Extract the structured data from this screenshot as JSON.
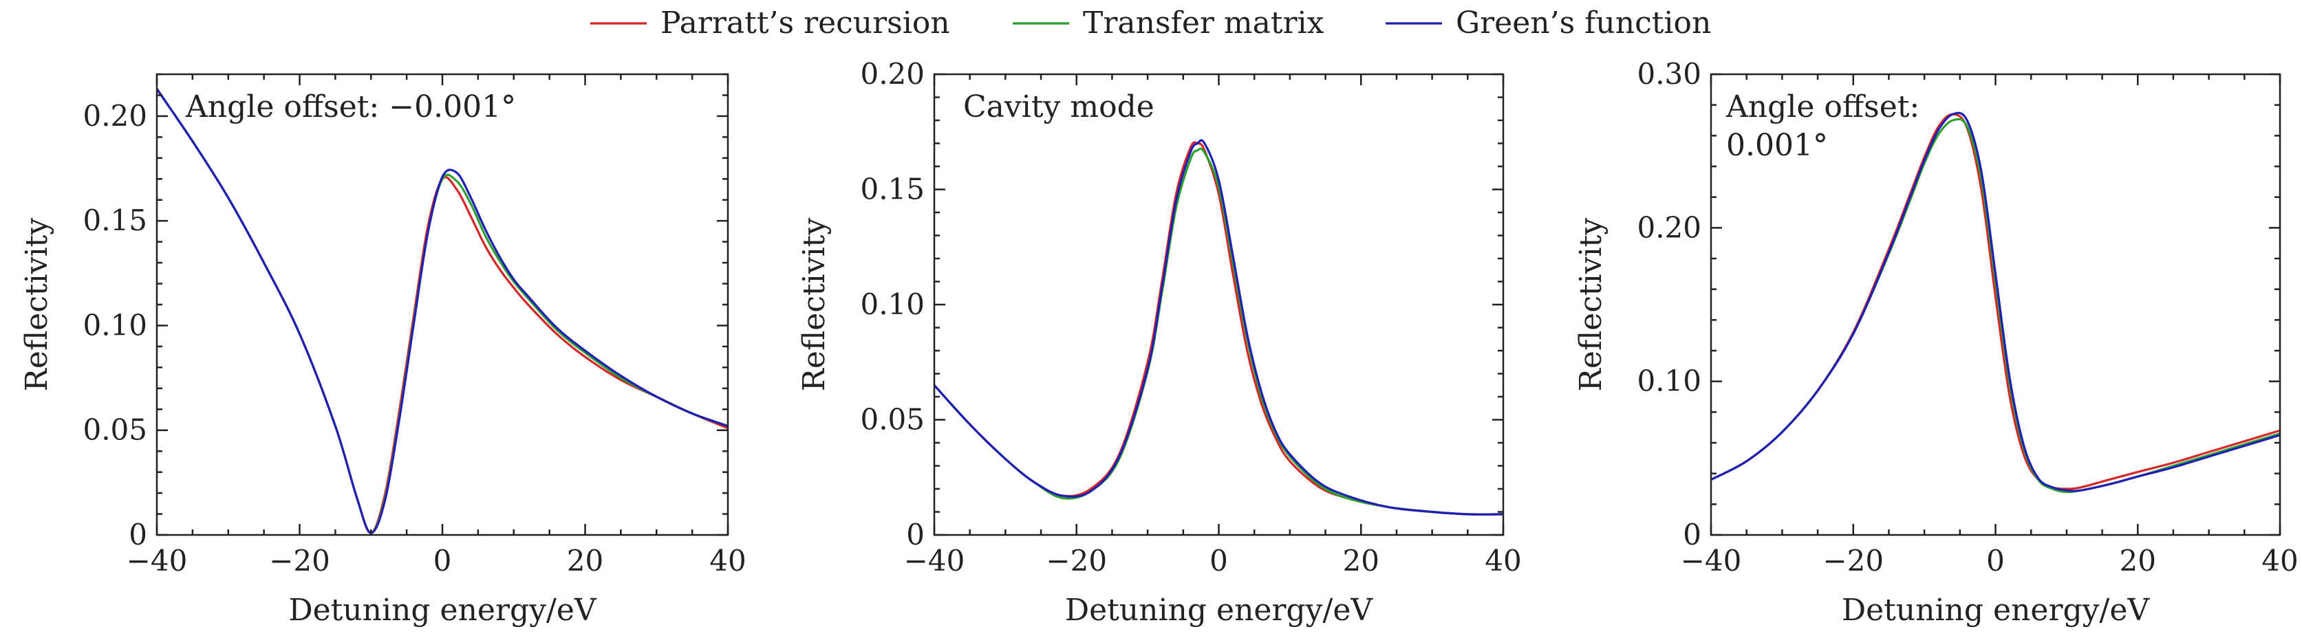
{
  "legend": [
    {
      "key": "parratt",
      "label": "Parratt’s recursion",
      "color": "#d62728"
    },
    {
      "key": "transfer",
      "label": "Transfer matrix",
      "color": "#2ca02c"
    },
    {
      "key": "green",
      "label": "Green’s function",
      "color": "#1f1fb4"
    }
  ],
  "chart_data": [
    {
      "type": "line",
      "annotation": [
        "Angle offset: −0.001°"
      ],
      "xlabel": "Detuning energy/eV",
      "ylabel": "Reflectivity",
      "xlim": [
        -40,
        40
      ],
      "ylim": [
        0,
        0.22
      ],
      "xticks": [
        -40,
        -20,
        0,
        20,
        40
      ],
      "xtick_labels": [
        "−40",
        "−20",
        "0",
        "20",
        "40"
      ],
      "yticks": [
        0,
        0.05,
        0.1,
        0.15,
        0.2
      ],
      "ytick_labels": [
        "0",
        "0.05",
        "0.10",
        "0.15",
        "0.20"
      ],
      "x": [
        -40,
        -35,
        -30,
        -25,
        -20,
        -15,
        -12,
        -10,
        -8,
        -6,
        -4,
        -2,
        0,
        2,
        4,
        6,
        8,
        10,
        12,
        16,
        20,
        25,
        30,
        35,
        40
      ],
      "series": [
        {
          "key": "parratt",
          "values": [
            0.213,
            0.188,
            0.161,
            0.13,
            0.096,
            0.052,
            0.018,
            0.001,
            0.02,
            0.06,
            0.105,
            0.148,
            0.17,
            0.165,
            0.152,
            0.138,
            0.127,
            0.118,
            0.11,
            0.096,
            0.085,
            0.074,
            0.066,
            0.058,
            0.051
          ]
        },
        {
          "key": "transfer",
          "values": [
            0.213,
            0.188,
            0.161,
            0.13,
            0.096,
            0.052,
            0.018,
            0.001,
            0.018,
            0.057,
            0.102,
            0.145,
            0.17,
            0.169,
            0.158,
            0.143,
            0.131,
            0.121,
            0.113,
            0.098,
            0.087,
            0.075,
            0.066,
            0.058,
            0.052
          ]
        },
        {
          "key": "green",
          "values": [
            0.213,
            0.188,
            0.161,
            0.13,
            0.096,
            0.052,
            0.018,
            0.001,
            0.017,
            0.056,
            0.101,
            0.145,
            0.171,
            0.173,
            0.161,
            0.146,
            0.133,
            0.122,
            0.114,
            0.099,
            0.088,
            0.076,
            0.066,
            0.058,
            0.052
          ]
        }
      ]
    },
    {
      "type": "line",
      "annotation": [
        "Cavity mode"
      ],
      "xlabel": "Detuning energy/eV",
      "ylabel": "Reflectivity",
      "xlim": [
        -40,
        40
      ],
      "ylim": [
        0,
        0.2
      ],
      "xticks": [
        -40,
        -20,
        0,
        20,
        40
      ],
      "xtick_labels": [
        "−40",
        "−20",
        "0",
        "20",
        "40"
      ],
      "yticks": [
        0,
        0.05,
        0.1,
        0.15,
        0.2
      ],
      "ytick_labels": [
        "0",
        "0.05",
        "0.10",
        "0.15",
        "0.20"
      ],
      "x": [
        -40,
        -35,
        -30,
        -26,
        -22,
        -18,
        -14,
        -10,
        -8,
        -6,
        -4,
        -3,
        -2,
        0,
        2,
        4,
        6,
        8,
        10,
        14,
        18,
        24,
        30,
        35,
        40
      ],
      "series": [
        {
          "key": "parratt",
          "values": [
            0.065,
            0.048,
            0.033,
            0.023,
            0.017,
            0.02,
            0.035,
            0.075,
            0.11,
            0.148,
            0.168,
            0.17,
            0.167,
            0.148,
            0.113,
            0.08,
            0.057,
            0.042,
            0.032,
            0.021,
            0.016,
            0.012,
            0.01,
            0.009,
            0.009
          ]
        },
        {
          "key": "transfer",
          "values": [
            0.065,
            0.048,
            0.033,
            0.023,
            0.016,
            0.019,
            0.033,
            0.071,
            0.105,
            0.142,
            0.163,
            0.167,
            0.166,
            0.151,
            0.118,
            0.085,
            0.06,
            0.044,
            0.034,
            0.022,
            0.016,
            0.012,
            0.01,
            0.009,
            0.009
          ]
        },
        {
          "key": "green",
          "values": [
            0.065,
            0.048,
            0.033,
            0.023,
            0.017,
            0.019,
            0.034,
            0.072,
            0.107,
            0.145,
            0.166,
            0.17,
            0.17,
            0.154,
            0.121,
            0.087,
            0.062,
            0.045,
            0.035,
            0.023,
            0.017,
            0.012,
            0.01,
            0.009,
            0.009
          ]
        }
      ]
    },
    {
      "type": "line",
      "annotation": [
        "Angle offset:",
        "0.001°"
      ],
      "xlabel": "Detuning energy/eV",
      "ylabel": "Reflectivity",
      "xlim": [
        -40,
        40
      ],
      "ylim": [
        0,
        0.3
      ],
      "xticks": [
        -40,
        -20,
        0,
        20,
        40
      ],
      "xtick_labels": [
        "−40",
        "−20",
        "0",
        "20",
        "40"
      ],
      "yticks": [
        0,
        0.1,
        0.2,
        0.3
      ],
      "ytick_labels": [
        "0",
        "0.10",
        "0.20",
        "0.30"
      ],
      "x": [
        -40,
        -35,
        -30,
        -25,
        -20,
        -15,
        -12,
        -10,
        -8,
        -6,
        -4,
        -2,
        0,
        2,
        4,
        6,
        8,
        10,
        12,
        16,
        20,
        25,
        30,
        35,
        40
      ],
      "series": [
        {
          "key": "parratt",
          "values": [
            0.036,
            0.048,
            0.067,
            0.094,
            0.132,
            0.186,
            0.222,
            0.246,
            0.266,
            0.274,
            0.265,
            0.225,
            0.155,
            0.09,
            0.052,
            0.036,
            0.031,
            0.03,
            0.031,
            0.036,
            0.041,
            0.047,
            0.054,
            0.061,
            0.068
          ]
        },
        {
          "key": "transfer",
          "values": [
            0.036,
            0.048,
            0.067,
            0.094,
            0.131,
            0.183,
            0.218,
            0.242,
            0.261,
            0.27,
            0.266,
            0.232,
            0.165,
            0.098,
            0.056,
            0.036,
            0.03,
            0.028,
            0.029,
            0.033,
            0.038,
            0.045,
            0.052,
            0.059,
            0.066
          ]
        },
        {
          "key": "green",
          "values": [
            0.036,
            0.048,
            0.067,
            0.094,
            0.131,
            0.184,
            0.22,
            0.244,
            0.264,
            0.274,
            0.27,
            0.237,
            0.17,
            0.102,
            0.058,
            0.037,
            0.031,
            0.029,
            0.029,
            0.033,
            0.038,
            0.044,
            0.051,
            0.058,
            0.065
          ]
        }
      ]
    }
  ]
}
